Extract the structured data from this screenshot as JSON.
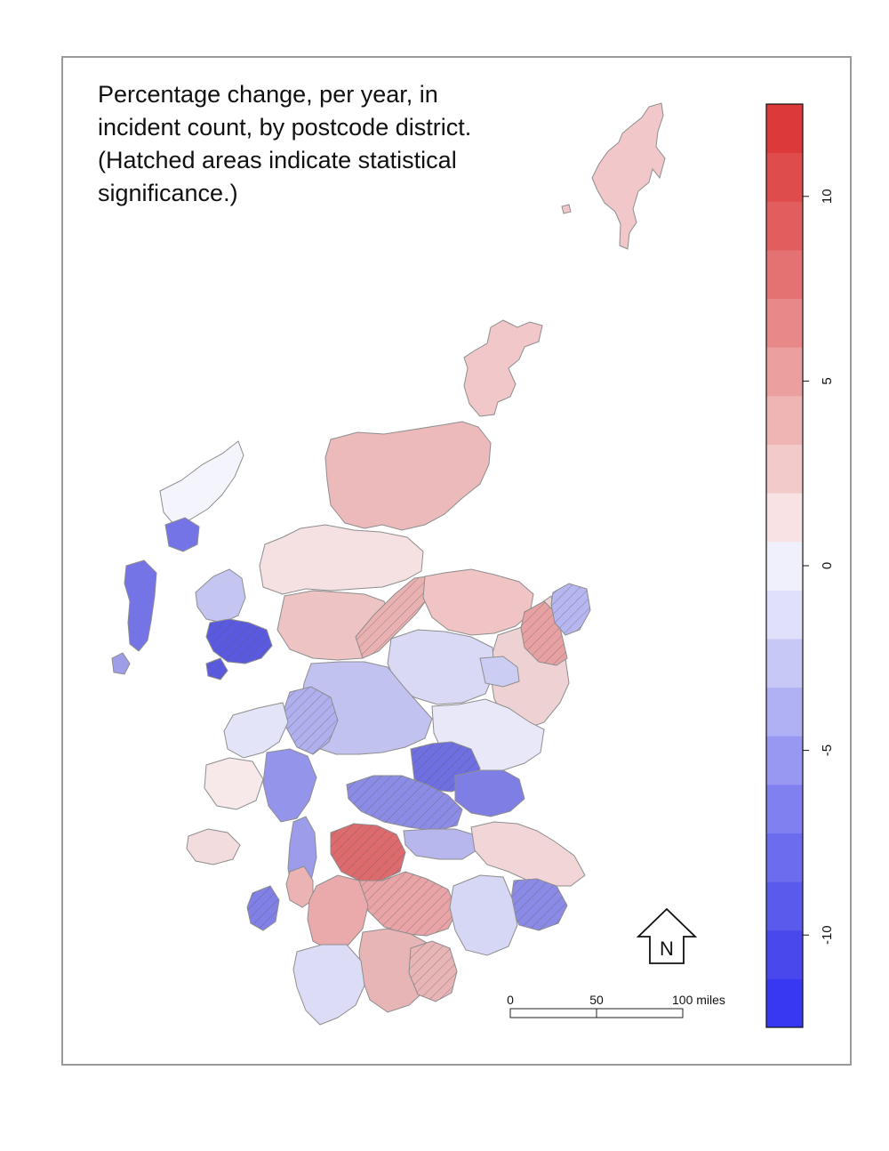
{
  "title": "Percentage change, per year, in incident count, by postcode district. (Hatched areas indicate statistical significance.)",
  "legend": {
    "colors": [
      "#3838f2",
      "#4848ed",
      "#5a5aec",
      "#6c6cee",
      "#8080f0",
      "#9898f2",
      "#b0b0f5",
      "#c8c8f7",
      "#e0e0fa",
      "#f0f0fc",
      "#f8e2e4",
      "#f3caca",
      "#efb4b4",
      "#ec9f9f",
      "#e88888",
      "#e57272",
      "#e25e5e",
      "#df4c4c",
      "#dc3a3a"
    ],
    "tick_values": [
      10,
      5,
      0,
      -5,
      -10
    ],
    "tick_labels": [
      "10",
      "5",
      "0",
      "-5",
      "-10"
    ],
    "range": [
      -12.5,
      12.5
    ]
  },
  "scale_bar": {
    "labels": [
      "0",
      "50",
      "100 miles"
    ]
  },
  "north_arrow": {
    "label": "N"
  },
  "regions": {
    "shetland": "#f1c7c9",
    "orkney": "#f1c7c9",
    "caithness_sutherland": "#ecbabb",
    "north_highland": "#f6e1e2",
    "great_glen": "#e9b1b2",
    "moray": "#f0c4c5",
    "aberdeenshire": "#eed2d3",
    "buchan": "#e7a1a3",
    "aberdeen": "#b6b6f1",
    "grampian_upland": "#d9d9f6",
    "perthshire": "#c2c2f1",
    "angus": "#e8e8f8",
    "tayside_south": "#6f6fe1",
    "fife": "#7e7ee5",
    "central_belt_north": "#8c8ce6",
    "glasgow": "#dd6b6e",
    "lanarkshire": "#e8a4a6",
    "edinburgh_lothian": "#f2d6d7",
    "west_lothian": "#b7b7ee",
    "borders_east": "#8b8be7",
    "borders_central": "#d6d6f5",
    "ayrshire": "#eaa9ab",
    "dumfries_central": "#e8b5b7",
    "dumfries_east": "#e8b5b7",
    "galloway": "#dcdcf7",
    "argyll_north": "#b0b0ee",
    "argyll_south": "#9494ea",
    "kintyre": "#9c9ceb",
    "islay": "#8080e6",
    "arran": "#ecb3b5",
    "mull": "#f3dcdd",
    "west_highland": "#e4e4f8",
    "lewis_harris": "#f4f4fd",
    "uists": "#7474e6",
    "barra": "#9e9ee8",
    "skye": "#5a5ae0",
    "skye_north": "#c5c5f2",
    "western_edge": "#f7e9ea",
    "highland_mid": "#eec3c4",
    "strathspey": "#cccdf2"
  }
}
